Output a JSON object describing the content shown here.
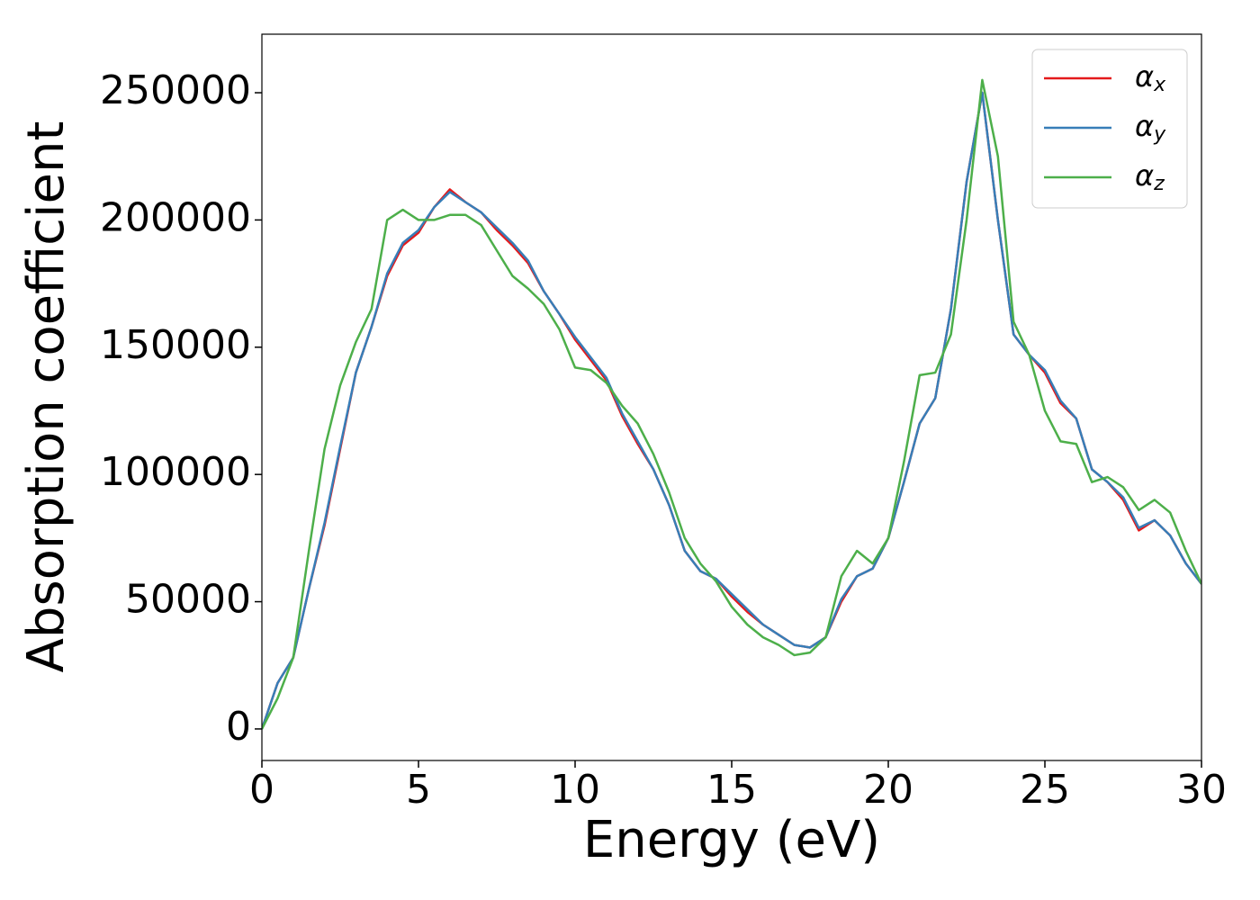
{
  "chart_data": {
    "type": "line",
    "x_label": "Energy (eV)",
    "y_label": "Absorption coefficient",
    "x": [
      0,
      0.5,
      1,
      1.5,
      2,
      2.5,
      3,
      3.5,
      4,
      4.5,
      5,
      5.5,
      6,
      6.5,
      7,
      7.5,
      8,
      8.5,
      9,
      9.5,
      10,
      10.5,
      11,
      11.5,
      12,
      12.5,
      13,
      13.5,
      14,
      14.5,
      15,
      15.5,
      16,
      16.5,
      17,
      17.5,
      18,
      18.5,
      19,
      19.5,
      20,
      20.5,
      21,
      21.5,
      22,
      22.5,
      23,
      23.5,
      24,
      24.5,
      25,
      25.5,
      26,
      26.5,
      27,
      27.5,
      28,
      28.5,
      29,
      29.5,
      30
    ],
    "series": [
      {
        "name": "αx",
        "color": "#e41a1c",
        "values": [
          0,
          18000,
          28000,
          55000,
          80000,
          110000,
          140000,
          158000,
          178000,
          190000,
          195000,
          205000,
          212000,
          207000,
          203000,
          196000,
          190000,
          183000,
          172000,
          163000,
          153000,
          145000,
          137000,
          123000,
          112000,
          102000,
          88000,
          70000,
          62000,
          59000,
          52000,
          46000,
          41000,
          37000,
          33000,
          32000,
          36000,
          50000,
          60000,
          63000,
          75000,
          97000,
          120000,
          130000,
          165000,
          215000,
          250000,
          200000,
          155000,
          147000,
          140000,
          128000,
          122000,
          102000,
          97000,
          90000,
          78000,
          82000,
          76000,
          65000,
          57000
        ]
      },
      {
        "name": "αy",
        "color": "#377eb8",
        "values": [
          0,
          18000,
          28000,
          55000,
          81000,
          111000,
          140000,
          158000,
          179000,
          191000,
          196000,
          205000,
          211000,
          207000,
          203000,
          197000,
          191000,
          184000,
          172000,
          163000,
          154000,
          146000,
          138000,
          124000,
          113000,
          102000,
          88000,
          70000,
          62000,
          59000,
          53000,
          47000,
          41000,
          37000,
          33000,
          32000,
          36000,
          51000,
          60000,
          63000,
          75000,
          97000,
          120000,
          130000,
          165000,
          215000,
          250000,
          200000,
          155000,
          147000,
          141000,
          129000,
          122000,
          102000,
          97000,
          91000,
          79000,
          82000,
          76000,
          65000,
          57000
        ]
      },
      {
        "name": "αz",
        "color": "#4daf4a",
        "values": [
          0,
          12000,
          28000,
          70000,
          110000,
          135000,
          152000,
          165000,
          200000,
          204000,
          200000,
          200000,
          202000,
          202000,
          198000,
          188000,
          178000,
          173000,
          167000,
          157000,
          142000,
          141000,
          136000,
          127000,
          120000,
          108000,
          93000,
          75000,
          65000,
          58000,
          48000,
          41000,
          36000,
          33000,
          29000,
          30000,
          36000,
          60000,
          70000,
          65000,
          75000,
          105000,
          139000,
          140000,
          155000,
          200000,
          255000,
          225000,
          160000,
          147000,
          125000,
          113000,
          112000,
          97000,
          99000,
          95000,
          86000,
          90000,
          85000,
          70000,
          57000
        ]
      }
    ],
    "xlim": [
      0,
      30
    ],
    "xticks": [
      0,
      5,
      10,
      15,
      20,
      25,
      30
    ],
    "ylim": [
      -12400,
      273000
    ],
    "yticks": [
      0,
      50000,
      100000,
      150000,
      200000,
      250000
    ],
    "grid": false,
    "legend": "upper right"
  }
}
